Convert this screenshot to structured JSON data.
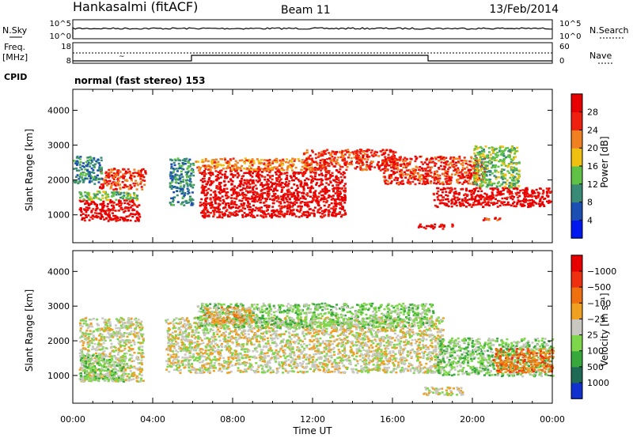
{
  "header": {
    "station": "Hankasalmi (fitACF)",
    "beam": "Beam 11",
    "date": "13/Feb/2014"
  },
  "status_panels": {
    "nsky_label": "N.Sky",
    "nsky_ticks": [
      "10^5",
      "10^0"
    ],
    "nsearch_label": "N.Search",
    "nsearch_ticks": [
      "10^5",
      "10^0"
    ],
    "freq_label": "Freq.",
    "freq_unit": "[MHz]",
    "freq_ticks": [
      "18",
      "8"
    ],
    "nave_label": "Nave",
    "nave_ticks": [
      "60",
      "0"
    ],
    "cpid_label": "CPID",
    "cpid_text": "normal (fast stereo) 153"
  },
  "chart_data": [
    {
      "type": "heatmap",
      "panel": "power",
      "ylabel": "Slant Range [km]",
      "xlabel": "",
      "y_ticks": [
        "1000",
        "2000",
        "3000",
        "4000"
      ],
      "ylim": [
        200,
        4600
      ],
      "colorbar_label": "Power [dB]",
      "colorbar_ticks": [
        "4",
        "8",
        "12",
        "16",
        "20",
        "24",
        "28"
      ],
      "colors": [
        "#0018f0",
        "#1c4fb4",
        "#3a8a78",
        "#5fc244",
        "#f0c010",
        "#f08020",
        "#f02010",
        "#e80000"
      ],
      "regions": [
        {
          "t": [
            0.3,
            3.3
          ],
          "r": [
            850,
            1450
          ],
          "level": 7
        },
        {
          "t": [
            0.2,
            3.3
          ],
          "r": [
            1450,
            1700
          ],
          "level": 3
        },
        {
          "t": [
            1.3,
            3.6
          ],
          "r": [
            1750,
            2350
          ],
          "level": 6
        },
        {
          "t": [
            0.0,
            1.4
          ],
          "r": [
            1900,
            2700
          ],
          "level": 2
        },
        {
          "t": [
            6.3,
            13.6
          ],
          "r": [
            950,
            2300
          ],
          "level": 7
        },
        {
          "t": [
            6.1,
            12.0
          ],
          "r": [
            2300,
            2650
          ],
          "level": 5
        },
        {
          "t": [
            11.5,
            16.2
          ],
          "r": [
            2300,
            2900
          ],
          "level": 6
        },
        {
          "t": [
            15.5,
            20.6
          ],
          "r": [
            1900,
            2700
          ],
          "level": 6
        },
        {
          "t": [
            18.0,
            24.0
          ],
          "r": [
            1250,
            1800
          ],
          "level": 7
        },
        {
          "t": [
            20.0,
            22.3
          ],
          "r": [
            1800,
            3000
          ],
          "level": 3
        },
        {
          "t": [
            4.8,
            6.0
          ],
          "r": [
            1300,
            2650
          ],
          "level": 2
        },
        {
          "t": [
            17.2,
            19.0
          ],
          "r": [
            620,
            760
          ],
          "level": 7
        },
        {
          "t": [
            20.5,
            21.5
          ],
          "r": [
            850,
            950
          ],
          "level": 6
        }
      ]
    },
    {
      "type": "heatmap",
      "panel": "velocity",
      "ylabel": "Slant Range [km]",
      "xlabel": "Time UT",
      "x_ticks": [
        "00:00",
        "04:00",
        "08:00",
        "12:00",
        "16:00",
        "20:00",
        "00:00"
      ],
      "xlim": [
        0,
        24
      ],
      "y_ticks": [
        "1000",
        "2000",
        "3000",
        "4000"
      ],
      "ylim": [
        200,
        4600
      ],
      "colorbar_label": "Velocity [m s⁻¹]",
      "colorbar_ticks": [
        "1000",
        "500",
        "100",
        "25",
        "−25",
        "−100",
        "−500",
        "−1000"
      ],
      "colors": [
        "#1030d0",
        "#1f6a55",
        "#37a83c",
        "#7ed64a",
        "#c8c8c0",
        "#f0a020",
        "#f07010",
        "#ee3010",
        "#e80000"
      ],
      "regions": [
        {
          "t": [
            0.3,
            3.5
          ],
          "r": [
            850,
            2700
          ],
          "level": 4
        },
        {
          "t": [
            0.3,
            2.5
          ],
          "r": [
            850,
            1600
          ],
          "level": 3
        },
        {
          "t": [
            4.6,
            18.5
          ],
          "r": [
            1100,
            2700
          ],
          "level": 4
        },
        {
          "t": [
            6.2,
            18.0
          ],
          "r": [
            2400,
            3100
          ],
          "level": 3
        },
        {
          "t": [
            6.5,
            9.0
          ],
          "r": [
            2500,
            3000
          ],
          "level": 5
        },
        {
          "t": [
            18.2,
            24.0
          ],
          "r": [
            1000,
            2100
          ],
          "level": 3
        },
        {
          "t": [
            21.0,
            24.0
          ],
          "r": [
            1100,
            1800
          ],
          "level": 6
        },
        {
          "t": [
            17.5,
            19.5
          ],
          "r": [
            450,
            700
          ],
          "level": 4
        }
      ]
    }
  ]
}
